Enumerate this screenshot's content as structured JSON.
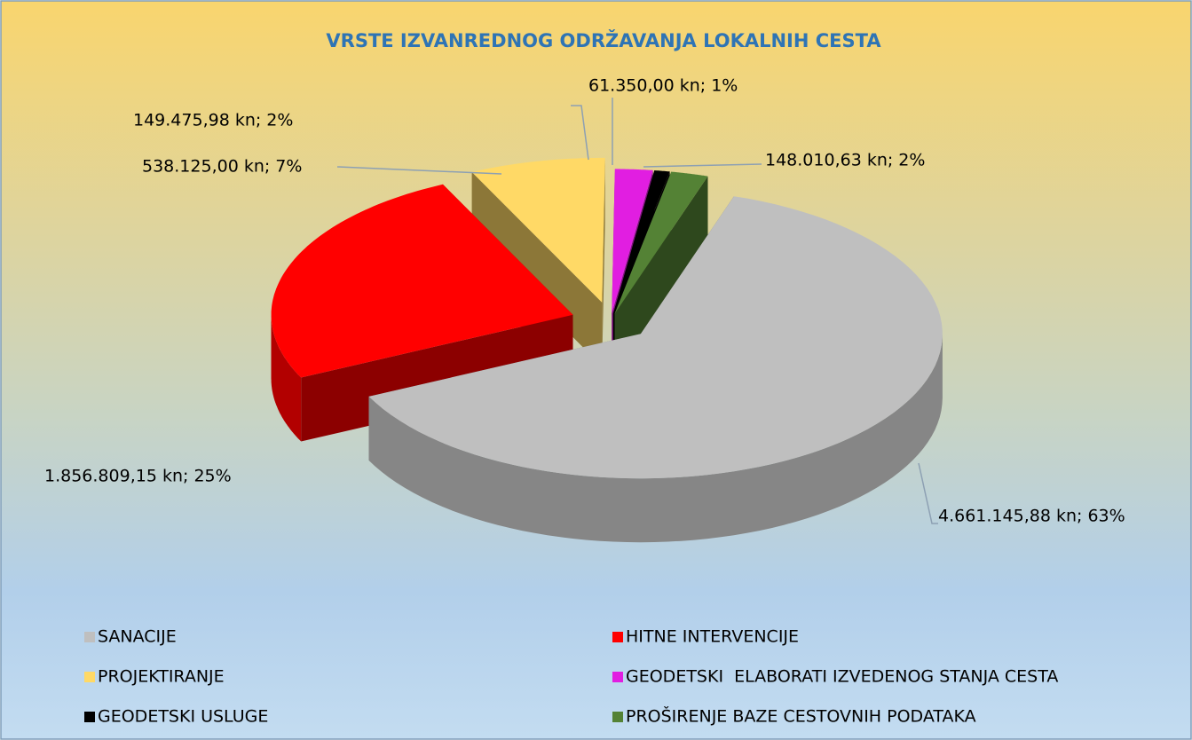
{
  "chart_data": {
    "type": "pie3d",
    "title": "VRSTE IZVANREDNOG ODRŽAVANJA LOKALNIH CESTA",
    "categories": [
      "SANACIJE",
      "HITNE INTERVENCIJE",
      "PROJEKTIRANJE",
      "GEODETSKI  ELABORATI IZVEDENOG STANJA CESTA",
      "GEODETSKI USLUGE",
      "PROŠIRENJE BAZE CESTOVNIH PODATAKA"
    ],
    "values": [
      4661145.88,
      1856809.15,
      538125.0,
      149475.98,
      61350.0,
      148010.63
    ],
    "value_labels": [
      "4.661.145,88 kn; 63%",
      "1.856.809,15 kn; 25%",
      "538.125,00 kn; 7%",
      "149.475,98 kn; 2%",
      "61.350,00 kn; 1%",
      "148.010,63 kn; 2%"
    ],
    "colors": [
      "#bfbfbf",
      "#ff0000",
      "#ffd966",
      "#e11ee1",
      "#000000",
      "#548235"
    ],
    "legend": "bottom"
  }
}
